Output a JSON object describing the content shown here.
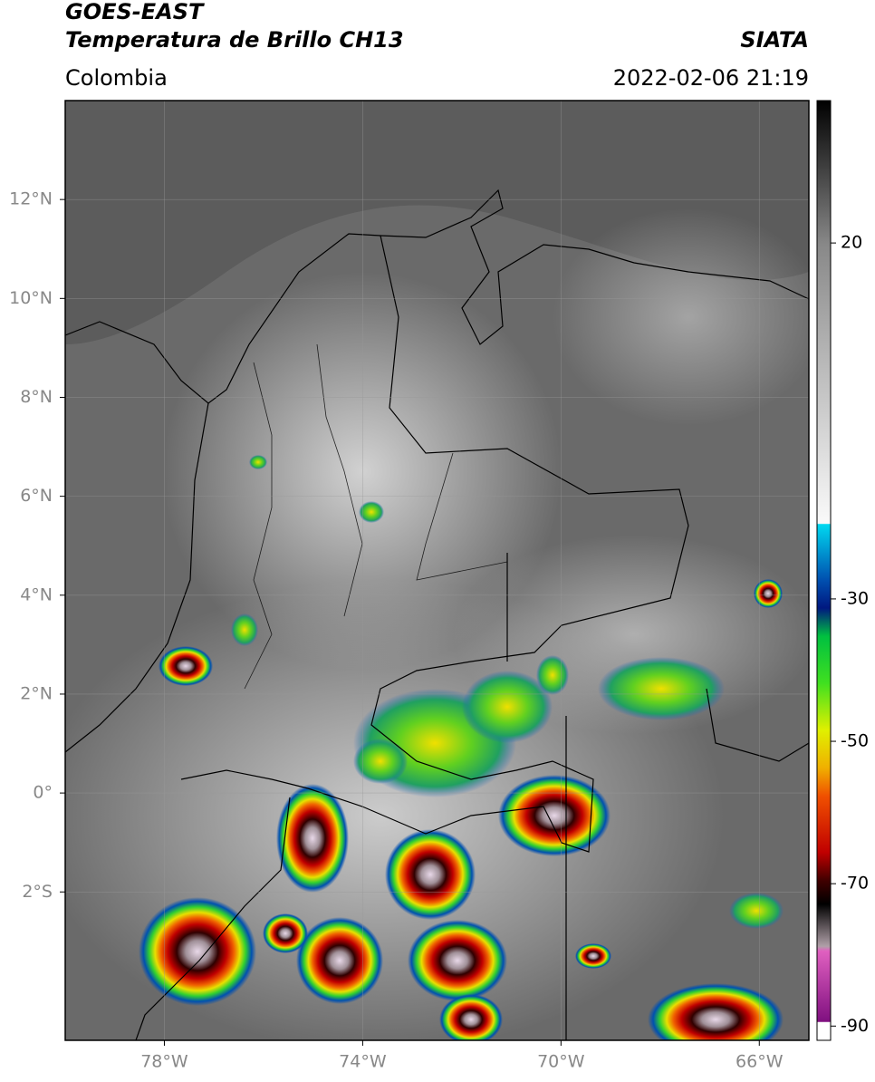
{
  "header": {
    "title": "GOES-EAST",
    "subtitle": "Temperatura de Brillo CH13",
    "region": "Colombia",
    "source": "SIATA",
    "datetime": "2022-02-06 21:19"
  },
  "map": {
    "lonlim": [
      -80,
      -65
    ],
    "latlim": [
      -5,
      14
    ],
    "lon_ticks": [
      {
        "value": -78,
        "label": "78°W"
      },
      {
        "value": -74,
        "label": "74°W"
      },
      {
        "value": -70,
        "label": "70°W"
      },
      {
        "value": -66,
        "label": "66°W"
      }
    ],
    "lat_ticks": [
      {
        "value": 12,
        "label": "12°N"
      },
      {
        "value": 10,
        "label": "10°N"
      },
      {
        "value": 8,
        "label": "8°N"
      },
      {
        "value": 6,
        "label": "6°N"
      },
      {
        "value": 4,
        "label": "4°N"
      },
      {
        "value": 2,
        "label": "2°N"
      },
      {
        "value": 0,
        "label": "0°"
      },
      {
        "value": -2,
        "label": "2°S"
      }
    ],
    "colorbar": {
      "lim": [
        -92,
        40
      ],
      "ticks": [
        20,
        -30,
        -50,
        -70,
        -90
      ]
    }
  }
}
